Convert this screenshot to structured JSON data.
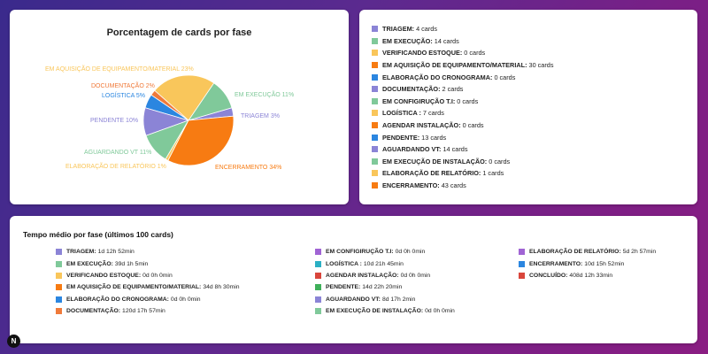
{
  "chart": {
    "title": "Porcentagem de cards por fase",
    "chart_data": {
      "type": "pie",
      "slices": [
        {
          "label": "TRIAGEM 3%",
          "value": 3,
          "color": "#8b84d6"
        },
        {
          "label": "EM EXECUÇÃO 11%",
          "value": 11,
          "color": "#80c99a"
        },
        {
          "label": "EM AQUISIÇÃO DE EQUIPAMENTO/MATERIAL 23%",
          "value": 23,
          "color": "#f9c65b"
        },
        {
          "label": "DOCUMENTAÇÃO 2%",
          "value": 2,
          "color": "#f07a3a"
        },
        {
          "label": "LOGÍSTICA 5%",
          "value": 5,
          "color": "#2b86e0"
        },
        {
          "label": "PENDENTE 10%",
          "value": 10,
          "color": "#8b84d6"
        },
        {
          "label": "AGUARDANDO VT 11%",
          "value": 11,
          "color": "#80c99a"
        },
        {
          "label": "ELABORAÇÃO DE RELATÓRIO 1%",
          "value": 1,
          "color": "#f9c65b"
        },
        {
          "label": "ENCERRAMENTO 34%",
          "value": 34,
          "color": "#f77b12"
        }
      ]
    }
  },
  "legend": {
    "items": [
      {
        "name": "TRIAGEM:",
        "value": "4 cards",
        "color": "#8b84d6"
      },
      {
        "name": "EM EXECUÇÃO:",
        "value": "14 cards",
        "color": "#80c99a"
      },
      {
        "name": "VERIFICANDO ESTOQUE:",
        "value": "0 cards",
        "color": "#f9c65b"
      },
      {
        "name": "EM AQUISIÇÃO DE EQUIPAMENTO/MATERIAL:",
        "value": "30 cards",
        "color": "#f77b12"
      },
      {
        "name": "ELABORAÇÃO DO CRONOGRAMA:",
        "value": "0 cards",
        "color": "#2b86e0"
      },
      {
        "name": "DOCUMENTAÇÃO:",
        "value": "2 cards",
        "color": "#8b84d6"
      },
      {
        "name": "EM CONFIGIRUÇÃO T.I:",
        "value": "0 cards",
        "color": "#80c99a"
      },
      {
        "name": "LOGÍSTICA :",
        "value": "7 cards",
        "color": "#f9c65b"
      },
      {
        "name": "AGENDAR INSTALAÇÃO:",
        "value": "0 cards",
        "color": "#f77b12"
      },
      {
        "name": "PENDENTE:",
        "value": "13 cards",
        "color": "#2b86e0"
      },
      {
        "name": "AGUARDANDO VT:",
        "value": "14 cards",
        "color": "#8b84d6"
      },
      {
        "name": "EM EXECUÇÃO DE INSTALAÇÃO:",
        "value": "0 cards",
        "color": "#80c99a"
      },
      {
        "name": "ELABORAÇÃO DE RELATÓRIO:",
        "value": "1 cards",
        "color": "#f9c65b"
      },
      {
        "name": "ENCERRAMENTO:",
        "value": "43 cards",
        "color": "#f77b12"
      }
    ]
  },
  "avg_time": {
    "title": "Tempo médio por fase (últimos 100 cards)",
    "columns": [
      [
        {
          "name": "TRIAGEM:",
          "value": "1d 12h 52min",
          "color": "#8b84d6"
        },
        {
          "name": "EM EXECUÇÃO:",
          "value": "39d 1h 5min",
          "color": "#80c99a"
        },
        {
          "name": "VERIFICANDO ESTOQUE:",
          "value": "0d 0h 0min",
          "color": "#f9c65b"
        },
        {
          "name": "EM AQUISIÇÃO DE EQUIPAMENTO/MATERIAL:",
          "value": "34d 8h 30min",
          "color": "#f77b12"
        },
        {
          "name": "ELABORAÇÃO DO CRONOGRAMA:",
          "value": "0d 0h 0min",
          "color": "#2b86e0"
        },
        {
          "name": "DOCUMENTAÇÃO:",
          "value": "120d 17h 57min",
          "color": "#f07a3a"
        }
      ],
      [
        {
          "name": "EM CONFIGIRUÇÃO T.I:",
          "value": "0d 0h 0min",
          "color": "#a064d4"
        },
        {
          "name": "LOGÍSTICA :",
          "value": "10d 21h 45min",
          "color": "#2bb0c4"
        },
        {
          "name": "AGENDAR INSTALAÇÃO:",
          "value": "0d 0h 0min",
          "color": "#d9463c"
        },
        {
          "name": "PENDENTE:",
          "value": "14d 22h 20min",
          "color": "#3fb05a"
        },
        {
          "name": "AGUARDANDO VT:",
          "value": "8d 17h 2min",
          "color": "#8b84d6"
        },
        {
          "name": "EM EXECUÇÃO DE INSTALAÇÃO:",
          "value": "0d 0h 0min",
          "color": "#80c99a"
        }
      ],
      [
        {
          "name": "ELABORAÇÃO DE RELATÓRIO:",
          "value": "5d 2h 57min",
          "color": "#a064d4"
        },
        {
          "name": "ENCERRAMENTO:",
          "value": "10d 15h 52min",
          "color": "#2b86e0"
        },
        {
          "name": "CONCLUÍDO:",
          "value": "408d 12h 33min",
          "color": "#d9463c"
        }
      ]
    ]
  },
  "badge": {
    "label": "N"
  }
}
